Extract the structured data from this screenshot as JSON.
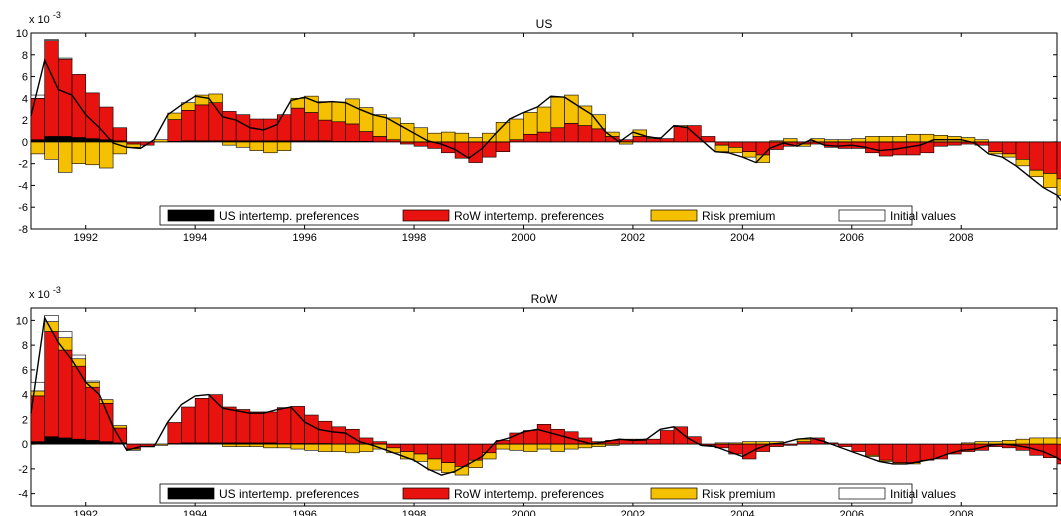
{
  "chart_data": [
    {
      "type": "bar",
      "stacked": true,
      "title": "US",
      "y_exponent_label": "x 10",
      "y_exponent_power": "-3",
      "ylim": [
        -8,
        10
      ],
      "yticks": [
        -8,
        -6,
        -4,
        -2,
        0,
        2,
        4,
        6,
        8,
        10
      ],
      "xlim": [
        1991.0,
        2009.75
      ],
      "xticks": [
        1992,
        1994,
        1996,
        1998,
        2000,
        2002,
        2004,
        2006,
        2008
      ],
      "grid": false,
      "legend_position": "bottom-center",
      "colors": {
        "us_pref": "#000000",
        "row_pref": "#e8120e",
        "risk": "#f5c000",
        "init": "#ffffff",
        "line": "#000000"
      },
      "series": [
        {
          "key": "us_pref",
          "name": "US intertemp. preferences",
          "values": [
            0.2,
            0.5,
            0.5,
            0.4,
            0.3,
            0.2,
            0.1,
            0,
            0,
            0,
            0.05,
            0.1,
            0.1,
            0.1,
            0.1,
            0.1,
            0.1,
            0.1,
            0.1,
            0.1,
            0.1,
            0.1,
            0.05,
            0.05,
            0.05,
            0,
            0,
            0,
            0,
            0,
            0,
            0,
            0,
            0,
            0,
            0,
            0,
            0,
            0,
            0,
            0,
            0,
            0,
            0,
            0,
            0,
            0,
            0,
            0,
            0,
            0,
            0,
            0,
            0,
            0,
            0,
            0,
            0,
            0,
            0,
            0,
            0,
            0,
            0,
            0,
            0,
            0,
            0,
            0,
            0,
            0,
            0,
            0,
            0,
            0
          ]
        },
        {
          "key": "row_pref",
          "name": "RoW intertemp. preferences",
          "values": [
            3.8,
            8.8,
            7.1,
            5.8,
            4.2,
            3.0,
            1.2,
            -0.2,
            -0.3,
            0,
            2.0,
            2.8,
            3.3,
            3.5,
            2.7,
            2.4,
            2.0,
            2.0,
            2.4,
            3.0,
            2.6,
            1.9,
            1.8,
            1.6,
            0.9,
            0.5,
            0.2,
            -0.2,
            -0.4,
            -0.6,
            -1.0,
            -1.5,
            -1.9,
            -1.4,
            -0.9,
            0.2,
            0.7,
            0.9,
            1.3,
            1.7,
            1.5,
            1.2,
            0.5,
            0.2,
            0.5,
            0.3,
            0.3,
            1.4,
            1.5,
            0.5,
            -0.3,
            -0.5,
            -0.9,
            -1.2,
            -0.7,
            -0.4,
            -0.2,
            -0.2,
            -0.5,
            -0.6,
            -0.6,
            -1.0,
            -1.3,
            -1.2,
            -1.2,
            -1.0,
            -0.4,
            -0.3,
            -0.2,
            -0.3,
            -0.9,
            -1.1,
            -1.6,
            -2.6,
            -2.9,
            -3.4,
            -3.9,
            -4.1,
            -3.6,
            -3.3,
            -3.0,
            -2.8,
            -2.3,
            -2.6,
            -3.0
          ]
        },
        {
          "key": "risk",
          "name": "Risk premium",
          "values": [
            -1.1,
            -1.6,
            -2.8,
            -2.0,
            -2.1,
            -2.4,
            -1.1,
            -0.3,
            0,
            0.2,
            0.6,
            0.7,
            0.9,
            0.8,
            -0.3,
            -0.5,
            -0.8,
            -1.0,
            -0.8,
            0.9,
            1.5,
            1.7,
            1.8,
            2.3,
            2.2,
            2.0,
            2.0,
            1.7,
            1.3,
            0.8,
            0.9,
            0.8,
            0.4,
            0.8,
            1.8,
            1.9,
            2.0,
            2.3,
            2.8,
            2.6,
            1.8,
            1.3,
            0.4,
            -0.2,
            0.6,
            0.1,
            0,
            0.1,
            0,
            0,
            -0.6,
            -0.5,
            -0.5,
            -0.7,
            0.1,
            0.3,
            -0.2,
            0.3,
            0.2,
            0.2,
            0.3,
            0.5,
            0.5,
            0.5,
            0.7,
            0.7,
            0.6,
            0.5,
            0.4,
            0.2,
            -0.2,
            -0.3,
            -0.6,
            -0.6,
            -1.3,
            -1.5,
            -2.5,
            -2.0,
            -1.6,
            -1.3,
            -0.8,
            -0.6,
            -0.3,
            -0.4,
            -1.7
          ]
        },
        {
          "key": "init",
          "name": "Initial values",
          "values": [
            0.3,
            0.1,
            0.1,
            0,
            0,
            0,
            0,
            0,
            0,
            0,
            0,
            0,
            0,
            0,
            0,
            0,
            0,
            0,
            0,
            0,
            0,
            0,
            0,
            0,
            0,
            0,
            0,
            0,
            0,
            0,
            0,
            0,
            0,
            0,
            0,
            0,
            0,
            0,
            0,
            0,
            0,
            0,
            0,
            0,
            0,
            0,
            0,
            0,
            0,
            0,
            0,
            0,
            0,
            0,
            0,
            0,
            0,
            0,
            0,
            0,
            0,
            0,
            0,
            0,
            0,
            0,
            0,
            0,
            0,
            0,
            0,
            0,
            0,
            0,
            0,
            0,
            0,
            0,
            0,
            0,
            0,
            0,
            0,
            0,
            0
          ]
        }
      ],
      "line": {
        "start": 1991.0,
        "step": 0.25,
        "values": [
          2.4,
          7.5,
          4.8,
          4.3,
          2.5,
          1.3,
          -0.1,
          -0.5,
          -0.6,
          0.2,
          2.5,
          3.4,
          4.2,
          4.0,
          2.3,
          2.0,
          1.3,
          1.1,
          1.6,
          3.8,
          4.1,
          3.6,
          3.7,
          3.6,
          3.0,
          2.5,
          2.2,
          1.5,
          0.8,
          0.1,
          -0.2,
          -0.7,
          -1.5,
          -0.6,
          0.8,
          2.1,
          2.7,
          3.2,
          4.2,
          4.1,
          3.3,
          2.5,
          0.9,
          0.0,
          0.9,
          0.5,
          0.3,
          1.5,
          1.3,
          0.2,
          -0.9,
          -1.0,
          -1.4,
          -1.9,
          -0.6,
          -0.1,
          -0.4,
          0.2,
          -0.3,
          -0.4,
          -0.3,
          -0.5,
          -0.8,
          -0.7,
          -0.5,
          -0.3,
          0.2,
          0.2,
          0.2,
          -0.1,
          -1.1,
          -1.4,
          -2.2,
          -3.2,
          -4.2,
          -4.9,
          -6.4,
          -6.1,
          -5.2,
          -4.6,
          -3.8,
          -3.4,
          -2.6,
          -3.0,
          -4.7
        ]
      }
    },
    {
      "type": "bar",
      "stacked": true,
      "title": "RoW",
      "y_exponent_label": "x 10",
      "y_exponent_power": "-3",
      "ylim": [
        -5,
        11
      ],
      "yticks": [
        -4,
        -2,
        0,
        2,
        4,
        6,
        8,
        10
      ],
      "xlim": [
        1991.0,
        2009.75
      ],
      "xticks": [
        1992,
        1994,
        1996,
        1998,
        2000,
        2002,
        2004,
        2006,
        2008
      ],
      "grid": false,
      "legend_position": "bottom-center",
      "colors": {
        "us_pref": "#000000",
        "row_pref": "#e8120e",
        "risk": "#f5c000",
        "init": "#ffffff",
        "line": "#000000"
      },
      "series": [
        {
          "key": "us_pref",
          "name": "US intertemp. preferences",
          "values": [
            0.2,
            0.6,
            0.5,
            0.4,
            0.3,
            0.2,
            0.1,
            0,
            0,
            0,
            0.05,
            0.1,
            0.1,
            0.1,
            0.1,
            0.1,
            0.1,
            0.1,
            0.05,
            0.05,
            0.05,
            0.05,
            0,
            0,
            0,
            0,
            0,
            0,
            0,
            0,
            0,
            0,
            0,
            0,
            0,
            0,
            0,
            0,
            0,
            0,
            0,
            0,
            0,
            0,
            0,
            0,
            0,
            0,
            0,
            0,
            0,
            0,
            0,
            0,
            0,
            0,
            0,
            0,
            0,
            0,
            0,
            0,
            0,
            0,
            0,
            0,
            0,
            0,
            0,
            0,
            0,
            0,
            0,
            0,
            0,
            0,
            0,
            0,
            0,
            0,
            0,
            0,
            0,
            0,
            0
          ]
        },
        {
          "key": "row_pref",
          "name": "RoW intertemp. preferences",
          "values": [
            3.7,
            8.5,
            7.1,
            5.9,
            4.3,
            3.1,
            1.2,
            -0.4,
            -0.2,
            0,
            1.7,
            2.9,
            3.6,
            3.9,
            2.9,
            2.7,
            2.5,
            2.5,
            2.9,
            3.0,
            2.3,
            1.8,
            1.4,
            1.2,
            0.5,
            0.2,
            -0.3,
            -0.6,
            -0.8,
            -1.2,
            -1.5,
            -1.8,
            -1.3,
            -0.7,
            0.3,
            0.9,
            1.1,
            1.6,
            1.2,
            1.0,
            0.5,
            0.2,
            0.3,
            0.4,
            0.3,
            0.4,
            1.1,
            1.4,
            0.6,
            -0.1,
            -0.3,
            -0.8,
            -1.2,
            -0.6,
            -0.2,
            -0.1,
            0.2,
            0.5,
            0.1,
            -0.2,
            -0.6,
            -0.9,
            -1.3,
            -1.5,
            -1.5,
            -1.3,
            -1.2,
            -0.8,
            -0.6,
            -0.5,
            -0.2,
            -0.3,
            -0.5,
            -0.9,
            -1.1,
            -1.6,
            -2.4,
            -3.1,
            -3.5,
            -2.9,
            -2.7,
            -2.5,
            -2.2,
            -2.0,
            -2.6
          ]
        },
        {
          "key": "risk",
          "name": "Risk premium",
          "values": [
            0.4,
            0.8,
            1.0,
            0.6,
            0.4,
            0.3,
            0.2,
            -0.1,
            0,
            -0.1,
            0,
            0,
            0,
            0,
            -0.2,
            -0.2,
            -0.2,
            -0.3,
            -0.3,
            -0.4,
            -0.5,
            -0.6,
            -0.6,
            -0.7,
            -0.6,
            -0.4,
            -0.4,
            -0.6,
            -0.6,
            -0.9,
            -0.8,
            -0.7,
            -0.6,
            -0.5,
            -0.4,
            -0.5,
            -0.6,
            -0.4,
            -0.6,
            -0.4,
            -0.3,
            -0.2,
            -0.1,
            0,
            0.1,
            0,
            0,
            0,
            0,
            0,
            0.1,
            0.1,
            0.2,
            0.2,
            0.2,
            0,
            0.2,
            0,
            0,
            0,
            0,
            -0.1,
            -0.1,
            -0.1,
            -0.1,
            0,
            0,
            0,
            0.1,
            0.2,
            0.2,
            0.3,
            0.4,
            0.5,
            0.5,
            0.5,
            0.6,
            0.7,
            0.6,
            0.5,
            0.5,
            0.5,
            0.3,
            0.4,
            0.5
          ]
        },
        {
          "key": "init",
          "name": "Initial values",
          "values": [
            0.7,
            0.5,
            0.5,
            0.3,
            0.1,
            0,
            0,
            0,
            0,
            0,
            0,
            0,
            0,
            0,
            0,
            0,
            0,
            0,
            0,
            0,
            0,
            0,
            0,
            0,
            0,
            0,
            0,
            0,
            0,
            0,
            0,
            0,
            0,
            0,
            0,
            0,
            0,
            0,
            0,
            0,
            0,
            0,
            0,
            0,
            0,
            0,
            0,
            0,
            0,
            0,
            0,
            0,
            0,
            0,
            0,
            0,
            0,
            0,
            0,
            0,
            0,
            0,
            0,
            0,
            0,
            0,
            0,
            0,
            0,
            0,
            0,
            0,
            0,
            0,
            0,
            0,
            0,
            0,
            0,
            0,
            0,
            0,
            0,
            0,
            0
          ]
        }
      ],
      "line": {
        "start": 1991.0,
        "step": 0.25,
        "values": [
          2.5,
          10.2,
          8.2,
          6.8,
          5.0,
          4.0,
          1.4,
          -0.5,
          -0.2,
          -0.2,
          1.8,
          3.2,
          3.9,
          4.0,
          2.9,
          2.7,
          2.5,
          2.5,
          2.8,
          3.0,
          1.8,
          1.2,
          1.0,
          0.9,
          0.2,
          -0.1,
          -0.5,
          -0.9,
          -1.3,
          -2.0,
          -2.5,
          -2.2,
          -1.6,
          -1.0,
          0.2,
          0.5,
          1.0,
          1.2,
          0.9,
          0.6,
          0.3,
          0.0,
          0.2,
          0.4,
          0.3,
          0.4,
          1.2,
          1.4,
          0.5,
          -0.1,
          -0.2,
          -0.6,
          -1.0,
          -0.4,
          0.0,
          0.1,
          0.4,
          0.5,
          0.2,
          -0.2,
          -0.6,
          -1.0,
          -1.4,
          -1.6,
          -1.6,
          -1.4,
          -1.2,
          -0.8,
          -0.5,
          -0.4,
          -0.1,
          0.0,
          -0.1,
          -0.3,
          -0.6,
          -1.1,
          -1.8,
          -2.5,
          -2.9,
          -2.5,
          -2.2,
          -2.1,
          -1.8,
          -1.6,
          -2.1
        ]
      }
    }
  ]
}
